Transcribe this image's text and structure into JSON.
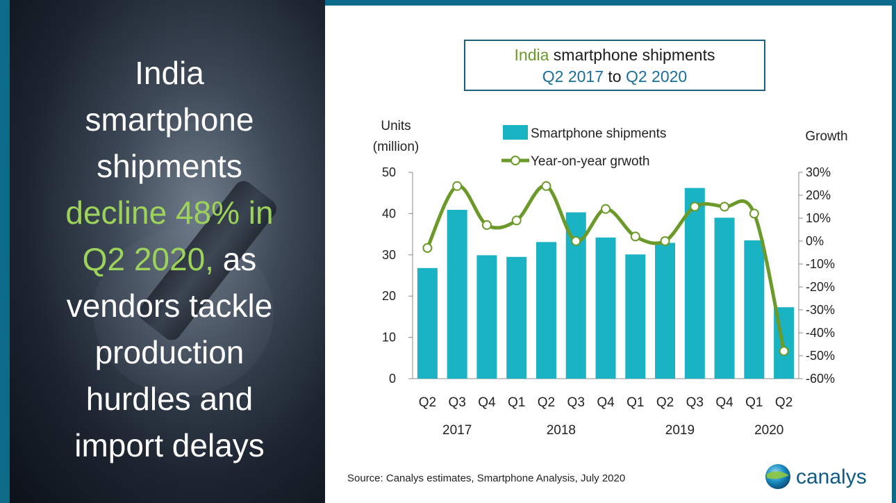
{
  "headline": {
    "line1": "India",
    "line2": "smartphone",
    "line3": "shipments",
    "line4_hl": "decline 48% in",
    "line5_hl": "Q2 2020,",
    "line5_rest": " as",
    "line6": "vendors tackle",
    "line7": "production",
    "line8": "hurdles and",
    "line9": "import delays"
  },
  "title": {
    "country": "India",
    "rest": " smartphone shipments",
    "from": "Q2 2017",
    "to_word": " to ",
    "to": "Q2 2020"
  },
  "source": "Source: Canalys estimates, Smartphone Analysis, July 2020",
  "logo_text": "canalys",
  "colors": {
    "bar": "#1ab3c3",
    "line": "#6b9a2a",
    "frame": "#0d6b8a"
  },
  "chart_data": {
    "type": "bar",
    "categories": [
      "Q2",
      "Q3",
      "Q4",
      "Q1",
      "Q2",
      "Q3",
      "Q4",
      "Q1",
      "Q2",
      "Q3",
      "Q4",
      "Q1",
      "Q2"
    ],
    "year_labels": [
      "2017",
      "2018",
      "2019",
      "2020"
    ],
    "ylabel_left": "Units\n(million)",
    "ylabel_right": "Growth",
    "ylim": [
      0,
      50
    ],
    "y2lim": [
      -60,
      30
    ],
    "yticks": [
      "50",
      "40",
      "30",
      "20",
      "10",
      "0"
    ],
    "y2ticks": [
      "30%",
      "20%",
      "10%",
      "0%",
      "-10%",
      "-20%",
      "-30%",
      "-40%",
      "-50%",
      "-60%"
    ],
    "series": [
      {
        "name": "Smartphone shipments",
        "type": "bar",
        "axis": "left",
        "values": [
          26.8,
          40.9,
          29.9,
          29.5,
          33.1,
          40.3,
          34.2,
          30.1,
          32.9,
          46.2,
          39.0,
          33.5,
          17.3
        ]
      },
      {
        "name": "Year-on-year grwoth",
        "type": "line",
        "axis": "right",
        "values": [
          -3,
          24,
          7,
          9,
          24,
          0,
          14,
          2,
          0,
          15,
          15,
          12,
          -48
        ]
      }
    ],
    "legend_position": "top"
  }
}
